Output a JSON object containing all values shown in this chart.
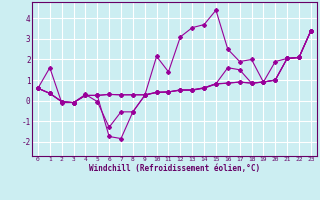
{
  "xlabel": "Windchill (Refroidissement éolien,°C)",
  "bg_color": "#cceef2",
  "line_color": "#990099",
  "grid_color": "#ffffff",
  "xlim": [
    -0.5,
    23.5
  ],
  "ylim": [
    -2.7,
    4.8
  ],
  "yticks": [
    -2,
    -1,
    0,
    1,
    2,
    3,
    4
  ],
  "xticks": [
    0,
    1,
    2,
    3,
    4,
    5,
    6,
    7,
    8,
    9,
    10,
    11,
    12,
    13,
    14,
    15,
    16,
    17,
    18,
    19,
    20,
    21,
    22,
    23
  ],
  "line1": [
    0.6,
    1.6,
    -0.1,
    -0.1,
    0.3,
    -0.05,
    -1.3,
    -0.55,
    -0.55,
    0.25,
    2.15,
    1.4,
    3.1,
    3.55,
    3.7,
    4.4,
    2.5,
    1.9,
    2.0,
    0.9,
    1.9,
    2.05,
    2.1,
    3.4
  ],
  "line2": [
    0.6,
    0.35,
    -0.05,
    -0.1,
    0.25,
    0.25,
    -1.75,
    -1.85,
    -0.55,
    0.25,
    0.4,
    0.42,
    0.5,
    0.5,
    0.6,
    0.8,
    0.85,
    0.9,
    0.85,
    0.9,
    1.0,
    2.05,
    2.1,
    3.4
  ],
  "line3": [
    0.6,
    0.35,
    -0.05,
    -0.1,
    0.25,
    0.25,
    0.3,
    0.28,
    0.28,
    0.28,
    0.4,
    0.42,
    0.52,
    0.52,
    0.62,
    0.82,
    0.85,
    0.9,
    0.85,
    0.9,
    1.0,
    2.05,
    2.1,
    3.4
  ],
  "line4": [
    0.6,
    0.35,
    -0.05,
    -0.1,
    0.25,
    0.25,
    0.3,
    0.28,
    0.28,
    0.28,
    0.4,
    0.42,
    0.52,
    0.52,
    0.62,
    0.82,
    1.6,
    1.5,
    0.85,
    0.9,
    1.0,
    2.05,
    2.1,
    3.4
  ]
}
